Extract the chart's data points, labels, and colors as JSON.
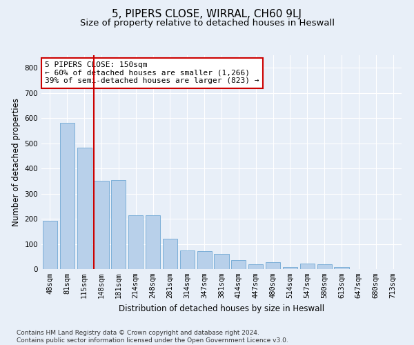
{
  "title": "5, PIPERS CLOSE, WIRRAL, CH60 9LJ",
  "subtitle": "Size of property relative to detached houses in Heswall",
  "xlabel": "Distribution of detached houses by size in Heswall",
  "ylabel": "Number of detached properties",
  "categories": [
    "48sqm",
    "81sqm",
    "115sqm",
    "148sqm",
    "181sqm",
    "214sqm",
    "248sqm",
    "281sqm",
    "314sqm",
    "347sqm",
    "381sqm",
    "414sqm",
    "447sqm",
    "480sqm",
    "514sqm",
    "547sqm",
    "580sqm",
    "613sqm",
    "647sqm",
    "680sqm",
    "713sqm"
  ],
  "values": [
    193,
    582,
    482,
    352,
    355,
    215,
    215,
    122,
    75,
    70,
    60,
    35,
    20,
    28,
    8,
    22,
    20,
    8,
    0,
    0,
    0
  ],
  "bar_color": "#b8d0ea",
  "bar_edge_color": "#6fa8d4",
  "highlight_index": 3,
  "highlight_line_color": "#cc0000",
  "annotation_text": "5 PIPERS CLOSE: 150sqm\n← 60% of detached houses are smaller (1,266)\n39% of semi-detached houses are larger (823) →",
  "annotation_box_color": "#ffffff",
  "annotation_box_edge_color": "#cc0000",
  "ylim": [
    0,
    850
  ],
  "yticks": [
    0,
    100,
    200,
    300,
    400,
    500,
    600,
    700,
    800
  ],
  "footer": "Contains HM Land Registry data © Crown copyright and database right 2024.\nContains public sector information licensed under the Open Government Licence v3.0.",
  "bg_color": "#e8eff8",
  "grid_color": "#ffffff",
  "title_fontsize": 11,
  "subtitle_fontsize": 9.5,
  "axis_label_fontsize": 8.5,
  "tick_fontsize": 7.5,
  "annotation_fontsize": 8,
  "footer_fontsize": 6.5
}
